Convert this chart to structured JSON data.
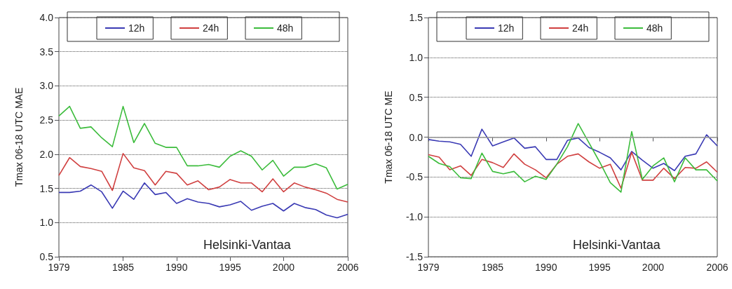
{
  "chart_data": [
    {
      "type": "line",
      "ylabel": "Tmax 06-18 UTC MAE",
      "x": [
        1979,
        1980,
        1981,
        1982,
        1983,
        1984,
        1985,
        1986,
        1987,
        1988,
        1989,
        1990,
        1991,
        1992,
        1993,
        1994,
        1995,
        1996,
        1997,
        1998,
        1999,
        2000,
        2001,
        2002,
        2003,
        2004,
        2005,
        2006
      ],
      "xlim": [
        1979,
        2006
      ],
      "xticks": [
        1979,
        1985,
        1990,
        1995,
        2000,
        2006
      ],
      "ylim": [
        0.5,
        4.0
      ],
      "yticks": [
        0.5,
        {
          "value": 1,
          "label": "1.0"
        },
        1.5,
        {
          "value": 2,
          "label": "2.0"
        },
        2.5,
        {
          "value": 3,
          "label": "3.0"
        },
        3.5,
        {
          "value": 4,
          "label": "4.0"
        }
      ],
      "grid": "y",
      "legend": "top",
      "marker": "none",
      "annotations": [
        "Helsinki-Vantaa"
      ],
      "series": [
        {
          "name": "12h",
          "color": "#3a3ab4",
          "values": [
            1.44,
            1.44,
            1.46,
            1.55,
            1.45,
            1.21,
            1.46,
            1.34,
            1.58,
            1.41,
            1.44,
            1.28,
            1.35,
            1.3,
            1.28,
            1.23,
            1.26,
            1.31,
            1.18,
            1.24,
            1.28,
            1.17,
            1.28,
            1.22,
            1.19,
            1.11,
            1.07,
            1.12
          ]
        },
        {
          "name": "24h",
          "color": "#d04040",
          "values": [
            1.69,
            1.95,
            1.82,
            1.79,
            1.75,
            1.47,
            2.01,
            1.8,
            1.76,
            1.55,
            1.75,
            1.72,
            1.55,
            1.61,
            1.48,
            1.52,
            1.63,
            1.58,
            1.58,
            1.45,
            1.64,
            1.45,
            1.58,
            1.52,
            1.48,
            1.43,
            1.34,
            1.3
          ]
        },
        {
          "name": "48h",
          "color": "#3cbc3c",
          "values": [
            2.56,
            2.7,
            2.38,
            2.4,
            2.24,
            2.11,
            2.7,
            2.17,
            2.45,
            2.16,
            2.1,
            2.1,
            1.83,
            1.83,
            1.85,
            1.81,
            1.97,
            2.05,
            1.97,
            1.77,
            1.91,
            1.68,
            1.81,
            1.81,
            1.86,
            1.8,
            1.49,
            1.56
          ]
        }
      ]
    },
    {
      "type": "line",
      "ylabel": "Tmax 06-18 UTC ME",
      "x": [
        1979,
        1980,
        1981,
        1982,
        1983,
        1984,
        1985,
        1986,
        1987,
        1988,
        1989,
        1990,
        1991,
        1992,
        1993,
        1994,
        1995,
        1996,
        1997,
        1998,
        1999,
        2000,
        2001,
        2002,
        2003,
        2004,
        2005,
        2006
      ],
      "xlim": [
        1979,
        2006
      ],
      "xticks": [
        1979,
        1985,
        1990,
        1995,
        2000,
        2006
      ],
      "ylim": [
        -1.5,
        1.5
      ],
      "yticks": [
        -1.5,
        {
          "value": -1,
          "label": "-1.0"
        },
        -0.5,
        {
          "value": 0,
          "label": "0.0"
        },
        0.5,
        {
          "value": 1,
          "label": "1.0"
        },
        1.5
      ],
      "grid": "y",
      "legend": "top",
      "marker": "none",
      "annotations": [
        "Helsinki-Vantaa"
      ],
      "ref_lines": [
        {
          "axis": "y",
          "value": 0,
          "color": "#9a9a9a",
          "line_style": "solid"
        }
      ],
      "series": [
        {
          "name": "12h",
          "color": "#3a3ab4",
          "values": [
            -0.03,
            -0.05,
            -0.06,
            -0.09,
            -0.24,
            0.1,
            -0.11,
            -0.06,
            -0.01,
            -0.14,
            -0.12,
            -0.28,
            -0.28,
            -0.04,
            -0.01,
            -0.13,
            -0.19,
            -0.26,
            -0.41,
            -0.18,
            -0.29,
            -0.39,
            -0.33,
            -0.42,
            -0.24,
            -0.21,
            0.03,
            -0.11
          ]
        },
        {
          "name": "24h",
          "color": "#d04040",
          "values": [
            -0.22,
            -0.25,
            -0.41,
            -0.36,
            -0.48,
            -0.28,
            -0.32,
            -0.38,
            -0.21,
            -0.34,
            -0.41,
            -0.51,
            -0.34,
            -0.24,
            -0.21,
            -0.31,
            -0.39,
            -0.34,
            -0.64,
            -0.19,
            -0.54,
            -0.54,
            -0.39,
            -0.52,
            -0.38,
            -0.39,
            -0.31,
            -0.44
          ]
        },
        {
          "name": "48h",
          "color": "#3cbc3c",
          "values": [
            -0.24,
            -0.33,
            -0.37,
            -0.51,
            -0.52,
            -0.2,
            -0.43,
            -0.46,
            -0.43,
            -0.56,
            -0.49,
            -0.53,
            -0.34,
            -0.12,
            0.17,
            -0.07,
            -0.31,
            -0.57,
            -0.69,
            0.07,
            -0.53,
            -0.36,
            -0.26,
            -0.56,
            -0.26,
            -0.41,
            -0.41,
            -0.55
          ]
        }
      ]
    }
  ]
}
